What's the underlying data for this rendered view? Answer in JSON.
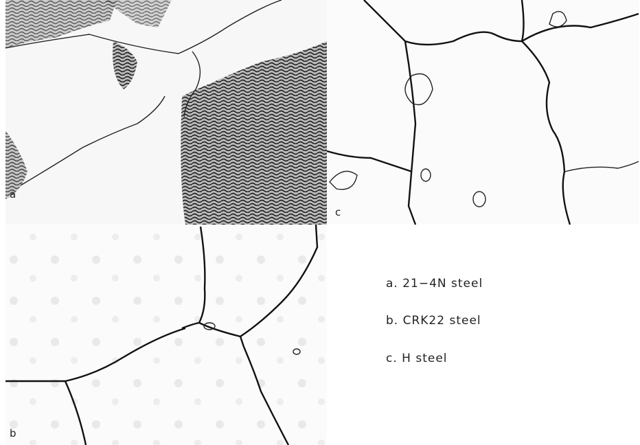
{
  "panels": [
    {
      "label": "a"
    },
    {
      "label": "b"
    },
    {
      "label": "c"
    }
  ],
  "legend": [
    "a. 21−4N steel",
    "b. CRK22 steel",
    "c. H steel"
  ]
}
